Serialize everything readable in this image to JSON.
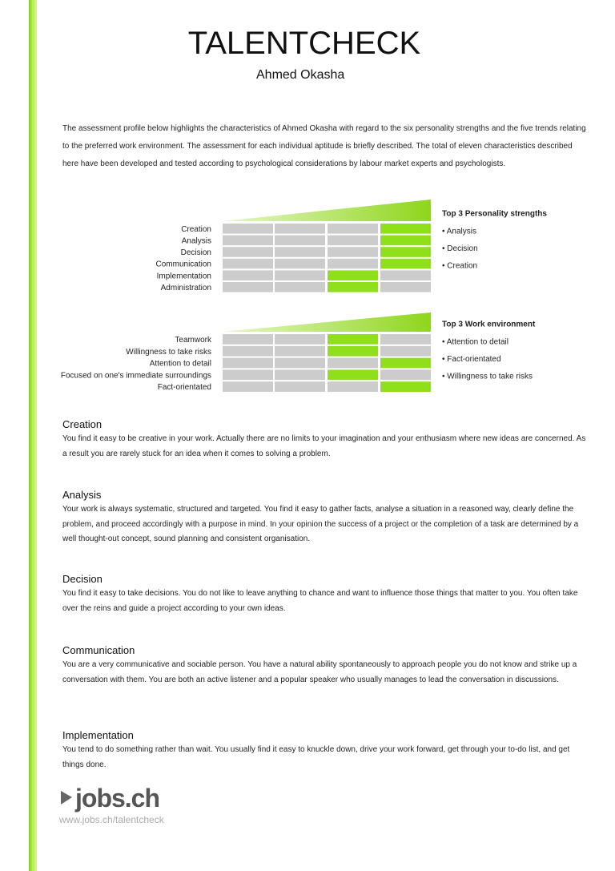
{
  "header": {
    "title": "TALENTCHECK",
    "name": "Ahmed Okasha"
  },
  "intro": "The assessment profile below highlights the characteristics of Ahmed Okasha with regard to the six personality strengths and the five trends relating to the preferred work environment. The assessment for each individual aptitude is briefly described. The total of eleven characteristics described here have been developed and tested according to psychological considerations by labour market experts and psychologists.",
  "personality": {
    "labels": [
      "Creation",
      "Analysis",
      "Decision",
      "Communication",
      "Implementation",
      "Administration"
    ],
    "levels": [
      4,
      4,
      4,
      4,
      3,
      3
    ],
    "top3_title": "Top 3 Personality strengths",
    "top3": [
      "• Analysis",
      "• Decision",
      "• Creation"
    ]
  },
  "work_environment": {
    "labels": [
      "Teamwork",
      "Willingness to take risks",
      "Attention to detail",
      "Focused on one's immediate surroundings",
      "Fact-orientated"
    ],
    "levels": [
      3,
      3,
      4,
      3,
      4
    ],
    "top3_title": "Top 3 Work environment",
    "top3": [
      "• Attention to detail",
      "• Fact-orientated",
      "• Willingness to take risks"
    ]
  },
  "sections": [
    {
      "heading": "Creation",
      "text": "You find it easy to be creative in your work. Actually there are no limits to your imagination and your enthusiasm where new ideas are concerned. As a result you are rarely stuck for an idea when it comes to solving a problem."
    },
    {
      "heading": "Analysis",
      "text": "Your work is always systematic, structured and targeted. You find it easy to gather facts, analyse a situation in a reasoned way, clearly define the problem, and proceed accordingly with a purpose in mind. In your opinion the success of a project or the completion of a task are determined by a well thought-out concept, sound planning and consistent organisation."
    },
    {
      "heading": "Decision",
      "text": "You find it easy to take decisions. You do not like to leave anything to chance and want to influence those things that matter to you. You often take over the reins and guide a project according to your own ideas."
    },
    {
      "heading": "Communication",
      "text": "You are a very communicative and sociable person. You have a natural ability spontaneously to approach people you do not know and strike up a conversation with them. You are both an active listener and a popular speaker who usually manages to lead the conversation in discussions."
    },
    {
      "heading": "Implementation",
      "text": "You tend to do something rather than wait. You usually find it easy to knuckle down, drive your work forward, get through your to-do list, and get things done."
    }
  ],
  "footer": {
    "logo": "jobs.ch",
    "url": "www.jobs.ch/talentcheck"
  }
}
